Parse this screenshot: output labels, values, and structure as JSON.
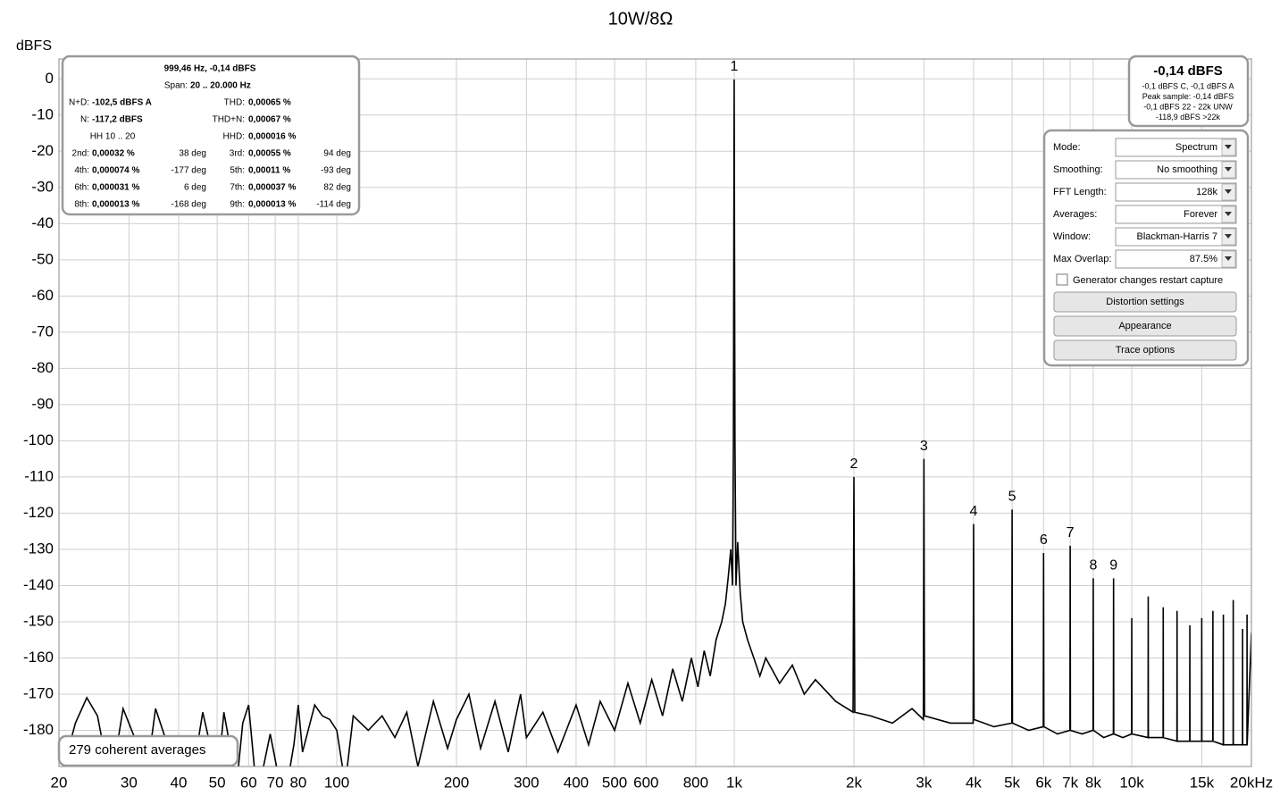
{
  "chart_data": {
    "type": "line",
    "title": "10W/8Ω",
    "y_label": "dBFS",
    "xscale": "log",
    "grid": true,
    "xlim": [
      20,
      20000
    ],
    "ylim": [
      -190,
      5.5
    ],
    "yticks": [
      0,
      -10,
      -20,
      -30,
      -40,
      -50,
      -60,
      -70,
      -80,
      -90,
      -100,
      -110,
      -120,
      -130,
      -140,
      -150,
      -160,
      -170,
      -180
    ],
    "xticks": [
      20,
      30,
      40,
      50,
      60,
      70,
      80,
      100,
      200,
      300,
      400,
      500,
      600,
      800,
      {
        "value": 1000,
        "label": "1k"
      },
      {
        "value": 2000,
        "label": "2k"
      },
      {
        "value": 3000,
        "label": "3k"
      },
      {
        "value": 4000,
        "label": "4k"
      },
      {
        "value": 5000,
        "label": "5k"
      },
      {
        "value": 6000,
        "label": "6k"
      },
      {
        "value": 7000,
        "label": "7k"
      },
      {
        "value": 8000,
        "label": "8k"
      },
      {
        "value": 10000,
        "label": "10k"
      },
      {
        "value": 15000,
        "label": "15k",
        "color": "#a0a0a0"
      },
      {
        "value": 20000,
        "label": "20kHz"
      }
    ],
    "series": [
      {
        "color": "#000000",
        "x": [
          20,
          22,
          23.5,
          25,
          27,
          29,
          31,
          33,
          35,
          37,
          40,
          43,
          46,
          48,
          50,
          52,
          54,
          56,
          58,
          60,
          62,
          64,
          68,
          72,
          75,
          78,
          80,
          82,
          88,
          92,
          96,
          100,
          105,
          110,
          120,
          130,
          140,
          150,
          160,
          175,
          190,
          200,
          215,
          230,
          250,
          270,
          290,
          300,
          330,
          360,
          400,
          430,
          460,
          500,
          540,
          580,
          620,
          660,
          700,
          740,
          780,
          810,
          840,
          870,
          900,
          930,
          950,
          965,
          980,
          990,
          995,
          999.46,
          1004,
          1010,
          1020,
          1035,
          1050,
          1080,
          1120,
          1160,
          1200,
          1300,
          1400,
          1500,
          1600,
          1800,
          1990,
          2000,
          2010,
          2200,
          2500,
          2800,
          2990,
          3000,
          3010,
          3500,
          3990,
          4000,
          4010,
          4500,
          4990,
          5000,
          5010,
          5500,
          5990,
          6000,
          6010,
          6500,
          6990,
          7000,
          7010,
          7500,
          7990,
          8000,
          8010,
          8500,
          8990,
          9000,
          9010,
          9500,
          9990,
          10000,
          10010,
          10990,
          11000,
          11010,
          11990,
          12000,
          12010,
          12990,
          13000,
          13010,
          13990,
          14000,
          14010,
          14990,
          15000,
          15010,
          15990,
          16000,
          16010,
          16990,
          17000,
          17010,
          17990,
          18000,
          18010,
          18990,
          19000,
          19010,
          19490,
          19500,
          19510,
          20000
        ],
        "values": [
          -195,
          -178,
          -171,
          -176,
          -195,
          -174,
          -182,
          -195,
          -174,
          -182,
          -195,
          -195,
          -175,
          -184,
          -195,
          -175,
          -185,
          -195,
          -178,
          -173,
          -190,
          -195,
          -181,
          -195,
          -195,
          -184,
          -173,
          -186,
          -173,
          -176,
          -177,
          -180,
          -195,
          -176,
          -180,
          -176,
          -182,
          -175,
          -190,
          -172,
          -185,
          -177,
          -170,
          -185,
          -172,
          -186,
          -170,
          -182,
          -175,
          -186,
          -173,
          -184,
          -172,
          -180,
          -167,
          -178,
          -166,
          -176,
          -163,
          -172,
          -160,
          -168,
          -158,
          -165,
          -155,
          -150,
          -145,
          -138,
          -130,
          -140,
          -100,
          -0.14,
          -100,
          -140,
          -128,
          -142,
          -150,
          -155,
          -160,
          -165,
          -160,
          -167,
          -162,
          -170,
          -166,
          -172,
          -175,
          -110,
          -175,
          -176,
          -178,
          -174,
          -177,
          -105,
          -176,
          -178,
          -178,
          -123,
          -177,
          -179,
          -178,
          -119,
          -178,
          -180,
          -179,
          -131,
          -179,
          -181,
          -180,
          -129,
          -180,
          -181,
          -180,
          -138,
          -180,
          -182,
          -181,
          -138,
          -181,
          -182,
          -181,
          -149,
          -181,
          -182,
          -143,
          -182,
          -182,
          -146,
          -182,
          -183,
          -147,
          -183,
          -183,
          -151,
          -183,
          -183,
          -149,
          -183,
          -183,
          -147,
          -183,
          -184,
          -148,
          -184,
          -184,
          -144,
          -184,
          -184,
          -152,
          -184,
          -184,
          -148,
          -184,
          -153
        ]
      }
    ],
    "harmonics": {
      "labels": [
        "1",
        "2",
        "3",
        "4",
        "5",
        "6",
        "7",
        "8",
        "9"
      ],
      "x": [
        999.46,
        2000,
        3000,
        4000,
        5000,
        6000,
        7000,
        8000,
        9000
      ],
      "values": [
        -0.14,
        -110,
        -105,
        -123,
        -119,
        -131,
        -129,
        -138,
        -138
      ]
    },
    "footer": "279 coherent averages"
  },
  "stats_panel": {
    "header": "999,46 Hz, -0,14 dBFS",
    "span_label": "Span:",
    "span": "20 .. 20.000 Hz",
    "rows": [
      {
        "l1": "N+D:",
        "v1": "-102,5 dBFS A",
        "l2": "THD:",
        "v2": "0,00065 %"
      },
      {
        "l1": "N:",
        "v1": "-117,2 dBFS",
        "l2": "THD+N:",
        "v2": "0,00067 %"
      },
      {
        "l1": "HH 10 .. 20",
        "l2": "HHD:",
        "v2": "0,000016 %"
      },
      {
        "l1": "2nd:",
        "v1": "0,00032 %",
        "d1": "38 deg",
        "l2": "3rd:",
        "v2": "0,00055 %",
        "d2": "94 deg"
      },
      {
        "l1": "4th:",
        "v1": "0,000074 %",
        "d1": "-177 deg",
        "l2": "5th:",
        "v2": "0,00011 %",
        "d2": "-93 deg"
      },
      {
        "l1": "6th:",
        "v1": "0,000031 %",
        "d1": "6 deg",
        "l2": "7th:",
        "v2": "0,000037 %",
        "d2": "82 deg"
      },
      {
        "l1": "8th:",
        "v1": "0,000013 %",
        "d1": "-168 deg",
        "l2": "9th:",
        "v2": "0,000013 %",
        "d2": "-114 deg"
      }
    ]
  },
  "level_panel": {
    "main": "-0,14 dBFS",
    "lines": [
      "-0,1 dBFS C, -0,1 dBFS A",
      "Peak sample: -0,14 dBFS",
      "-0,1 dBFS 22 - 22k UNW",
      "-118,9 dBFS >22k"
    ]
  },
  "controls": {
    "fields": [
      {
        "label": "Mode:",
        "value": "Spectrum"
      },
      {
        "label": "Smoothing:",
        "value": "No  smoothing"
      },
      {
        "label": "FFT Length:",
        "value": "128k"
      },
      {
        "label": "Averages:",
        "value": "Forever"
      },
      {
        "label": "Window:",
        "value": "Blackman-Harris 7"
      },
      {
        "label": "Max Overlap:",
        "value": "87.5%"
      }
    ],
    "checkbox": "Generator changes restart capture",
    "buttons": [
      "Distortion settings",
      "Appearance",
      "Trace options"
    ]
  }
}
